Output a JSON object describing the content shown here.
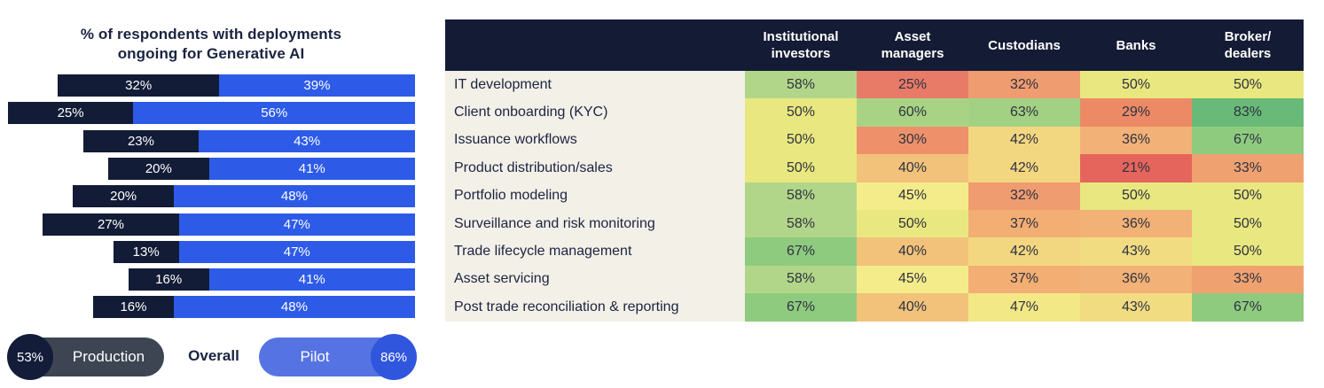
{
  "chart_data": [
    {
      "type": "bar",
      "orientation": "horizontal",
      "stacked": true,
      "alignment": "right-aligned",
      "title": "% of respondents with deployments ongoing for Generative AI",
      "categories": [
        "IT development",
        "Client onboarding (KYC)",
        "Issuance workflows",
        "Product distribution/sales",
        "Portfolio modeling",
        "Surveillance and risk monitoring",
        "Trade lifecycle management",
        "Asset servicing",
        "Post trade reconciliation & reporting"
      ],
      "series": [
        {
          "name": "Production",
          "values": [
            32,
            25,
            23,
            20,
            20,
            27,
            13,
            16,
            16
          ]
        },
        {
          "name": "Pilot",
          "values": [
            39,
            56,
            43,
            41,
            48,
            47,
            47,
            41,
            48
          ]
        }
      ],
      "overall": {
        "Production": 53,
        "Pilot": 86
      },
      "unit": "%",
      "legend_position": "bottom"
    },
    {
      "type": "heatmap",
      "columns": [
        "Institutional\ninvestors",
        "Asset\nmanagers",
        "Custodians",
        "Banks",
        "Broker/\ndealers"
      ],
      "rows": [
        {
          "label": "IT development",
          "values": [
            58,
            25,
            32,
            50,
            50
          ]
        },
        {
          "label": "Client onboarding (KYC)",
          "values": [
            50,
            60,
            63,
            29,
            83
          ]
        },
        {
          "label": "Issuance workflows",
          "values": [
            50,
            30,
            42,
            36,
            67
          ]
        },
        {
          "label": "Product distribution/sales",
          "values": [
            50,
            40,
            42,
            21,
            33
          ]
        },
        {
          "label": "Portfolio modeling",
          "values": [
            58,
            45,
            32,
            50,
            50
          ]
        },
        {
          "label": "Surveillance and risk monitoring",
          "values": [
            58,
            50,
            37,
            36,
            50
          ]
        },
        {
          "label": "Trade lifecycle management",
          "values": [
            67,
            40,
            42,
            43,
            50
          ]
        },
        {
          "label": "Asset servicing",
          "values": [
            58,
            45,
            37,
            36,
            33
          ]
        },
        {
          "label": "Post trade reconciliation & reporting",
          "values": [
            67,
            40,
            47,
            43,
            67
          ]
        }
      ],
      "unit": "%",
      "color_scale": "red-yellow-green, low to high"
    }
  ],
  "left_chart": {
    "title": "% of respondents with deployments\nongoing for Generative AI",
    "legend": {
      "production_value": "53%",
      "production_label": "Production",
      "overall_label": "Overall",
      "pilot_label": "Pilot",
      "pilot_value": "86%"
    }
  },
  "colors": {
    "production_bar": "#121c36",
    "pilot_bar": "#2d5be8",
    "title_text": "#1a2340",
    "header_bg": "#141b35",
    "header_text": "#ffffff",
    "label_column_bg": "#f3f0e8",
    "row_label_text": "#1b2440",
    "cell_text": "#2e3240",
    "production_pill_bg": "#3d4553",
    "production_badge_bg": "#131d3a",
    "pilot_pill_bg": "#5573e2",
    "pilot_badge_bg": "#2f56dd",
    "value_colors": {
      "21": "#e5655c",
      "25": "#e87a68",
      "29": "#ec8a66",
      "30": "#ee916a",
      "32": "#ef9c71",
      "33": "#efa170",
      "36": "#f2b176",
      "37": "#f2ae73",
      "40": "#f2c27b",
      "42": "#f3d780",
      "43": "#f2dc82",
      "45": "#f4ec8a",
      "47": "#f3e886",
      "50": "#e9e77f",
      "58": "#b2d689",
      "60": "#a9d384",
      "63": "#a3d183",
      "67": "#8fcb7f",
      "83": "#69ba78"
    }
  }
}
